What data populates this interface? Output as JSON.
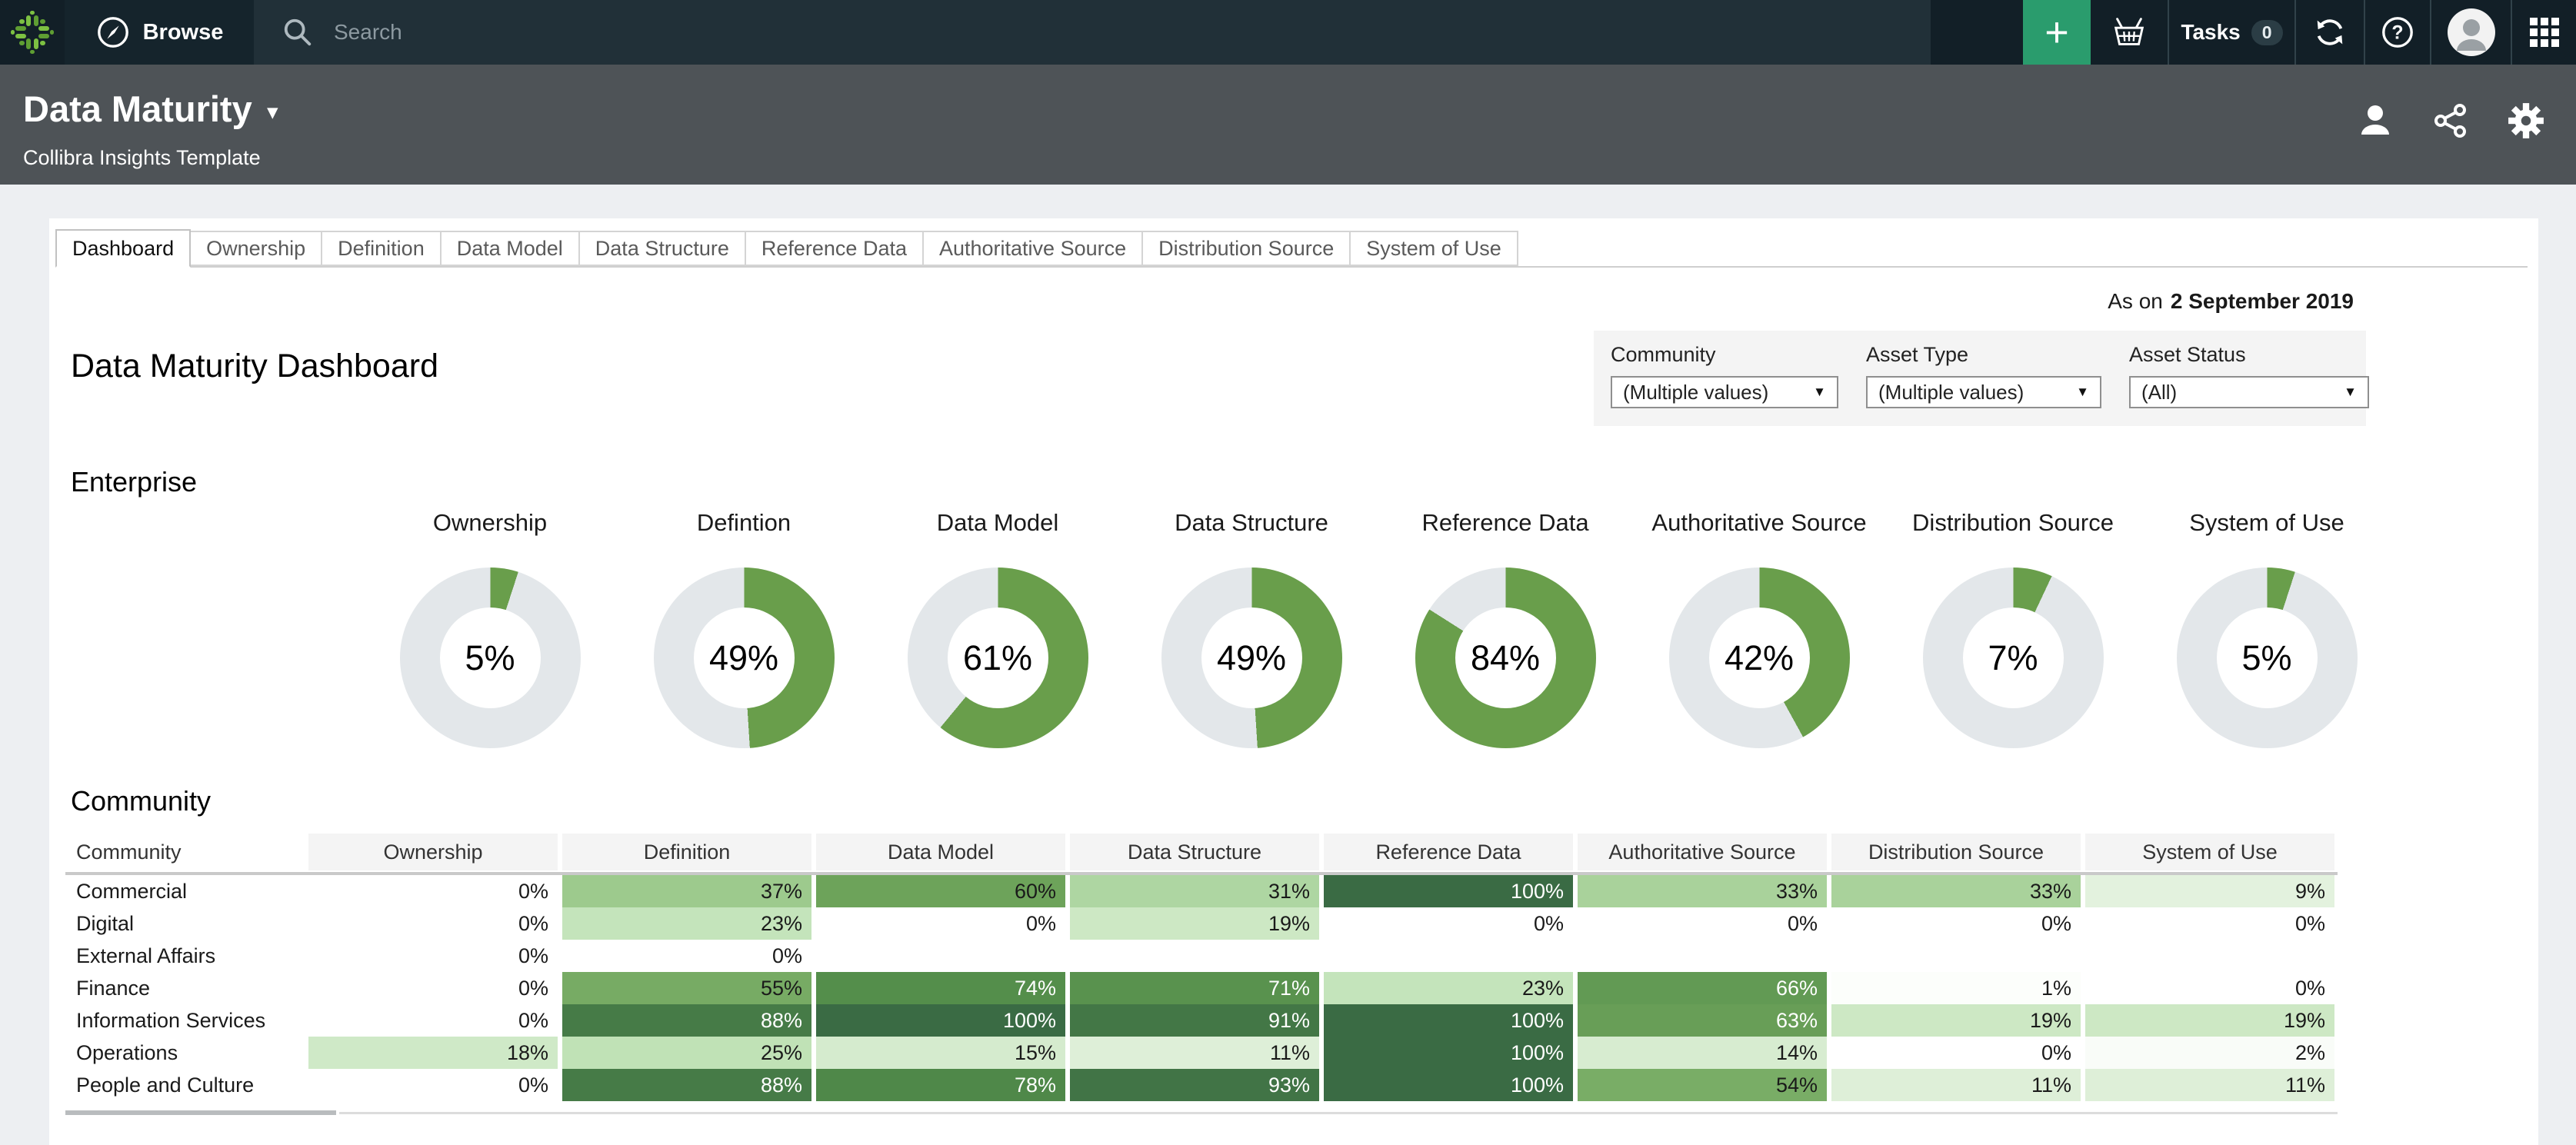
{
  "topbar": {
    "browse_label": "Browse",
    "search_placeholder": "Search",
    "tasks_label": "Tasks",
    "tasks_count": "0"
  },
  "titlebar": {
    "title": "Data Maturity",
    "subtitle": "Collibra Insights Template"
  },
  "tabs": {
    "active_index": 0,
    "items": [
      {
        "label": "Dashboard"
      },
      {
        "label": "Ownership"
      },
      {
        "label": "Definition"
      },
      {
        "label": "Data Model"
      },
      {
        "label": "Data Structure"
      },
      {
        "label": "Reference Data"
      },
      {
        "label": "Authoritative Source"
      },
      {
        "label": "Distribution Source"
      },
      {
        "label": "System of Use"
      }
    ]
  },
  "main": {
    "as_on_prefix": "As on",
    "as_on_date": "2 September 2019",
    "page_title": "Data Maturity Dashboard",
    "enterprise_heading": "Enterprise",
    "community_heading": "Community"
  },
  "filters": [
    {
      "label": "Community",
      "value": "(Multiple values)"
    },
    {
      "label": "Asset Type",
      "value": "(Multiple values)"
    },
    {
      "label": "Asset Status",
      "value": "(All)"
    }
  ],
  "icons": {
    "caret": "▾",
    "dropdown": "▼",
    "plus": "+"
  },
  "colors": {
    "accent_green": "#699e4b",
    "donut_track": "#e3e7ea",
    "plus_green": "#2a9c6d",
    "topbar_bg": "#213038",
    "topbar_dark": "#121f27",
    "titlebar_bg": "#4e5357",
    "page_bg": "#edeff2",
    "heat_text_light": "#ffffff",
    "heat_ramp": [
      [
        0,
        "#ffffff"
      ],
      [
        10,
        "#e0f0da"
      ],
      [
        25,
        "#c0e2b6"
      ],
      [
        40,
        "#94c483"
      ],
      [
        60,
        "#6da35a"
      ],
      [
        75,
        "#528c4a"
      ],
      [
        100,
        "#3a6b44"
      ]
    ]
  },
  "chart_data": [
    {
      "type": "pie",
      "subtype": "donut-row",
      "section": "Enterprise",
      "donuts": [
        {
          "label": "Ownership",
          "value": 5,
          "display": "5%"
        },
        {
          "label": "Defintion",
          "value": 49,
          "display": "49%"
        },
        {
          "label": "Data Model",
          "value": 61,
          "display": "61%"
        },
        {
          "label": "Data Structure",
          "value": 49,
          "display": "49%"
        },
        {
          "label": "Reference Data",
          "value": 84,
          "display": "84%"
        },
        {
          "label": "Authoritative Source",
          "value": 42,
          "display": "42%"
        },
        {
          "label": "Distribution Source",
          "value": 7,
          "display": "7%"
        },
        {
          "label": "System of Use",
          "value": 5,
          "display": "5%"
        }
      ]
    },
    {
      "type": "heatmap",
      "section": "Community",
      "first_column_header": "Community",
      "white_text_threshold": 62,
      "columns": [
        "Ownership",
        "Definition",
        "Data Model",
        "Data Structure",
        "Reference Data",
        "Authoritative Source",
        "Distribution Source",
        "System of Use"
      ],
      "rows": [
        {
          "name": "Commercial",
          "values": [
            0,
            37,
            60,
            31,
            100,
            33,
            33,
            9
          ],
          "display": [
            "0%",
            "37%",
            "60%",
            "31%",
            "100%",
            "33%",
            "33%",
            "9%"
          ]
        },
        {
          "name": "Digital",
          "values": [
            0,
            23,
            0,
            19,
            0,
            0,
            0,
            0
          ],
          "display": [
            "0%",
            "23%",
            "0%",
            "19%",
            "0%",
            "0%",
            "0%",
            "0%"
          ]
        },
        {
          "name": "External Affairs",
          "values": [
            0,
            0,
            null,
            null,
            null,
            null,
            null,
            null
          ],
          "display": [
            "0%",
            "0%",
            "",
            "",
            "",
            "",
            "",
            ""
          ]
        },
        {
          "name": "Finance",
          "values": [
            0,
            55,
            74,
            71,
            23,
            66,
            1,
            0
          ],
          "display": [
            "0%",
            "55%",
            "74%",
            "71%",
            "23%",
            "66%",
            "1%",
            "0%"
          ]
        },
        {
          "name": "Information Services",
          "values": [
            0,
            88,
            100,
            91,
            100,
            63,
            19,
            19
          ],
          "display": [
            "0%",
            "88%",
            "100%",
            "91%",
            "100%",
            "63%",
            "19%",
            "19%"
          ]
        },
        {
          "name": "Operations",
          "values": [
            18,
            25,
            15,
            11,
            100,
            14,
            0,
            2
          ],
          "display": [
            "18%",
            "25%",
            "15%",
            "11%",
            "100%",
            "14%",
            "0%",
            "2%"
          ]
        },
        {
          "name": "People and Culture",
          "values": [
            0,
            88,
            78,
            93,
            100,
            54,
            11,
            11
          ],
          "display": [
            "0%",
            "88%",
            "78%",
            "93%",
            "100%",
            "54%",
            "11%",
            "11%"
          ]
        }
      ]
    }
  ]
}
